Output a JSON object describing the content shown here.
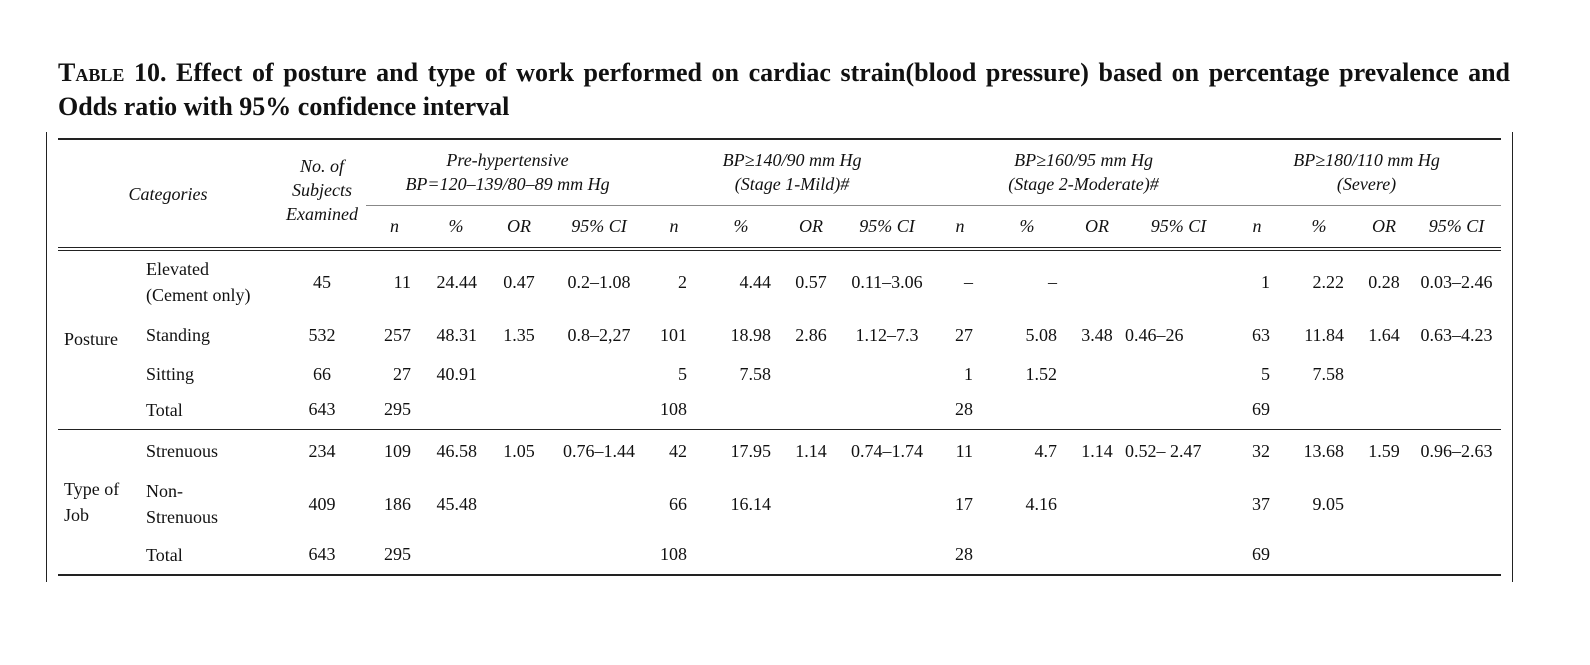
{
  "title": {
    "lead": "Table 10.",
    "text": " Effect of posture and type of work performed on cardiac strain(blood pressure) based on percentage prevalence  and Odds ratio with 95% confidence interval"
  },
  "header": {
    "categories": "Categories",
    "subjects": [
      "No. of",
      "Subjects",
      "Examined"
    ],
    "groups": [
      {
        "line1": "Pre-hypertensive",
        "line2": "BP=120–139/80–89 mm Hg"
      },
      {
        "line1": "BP≥140/90 mm Hg",
        "line2": "(Stage 1-Mild)#"
      },
      {
        "line1": "BP≥160/95 mm Hg",
        "line2": "(Stage 2-Moderate)#"
      },
      {
        "line1": "BP≥180/110 mm Hg",
        "line2": "(Severe)"
      }
    ],
    "subcols": [
      "n",
      "%",
      "OR",
      "95% CI"
    ]
  },
  "rows": [
    {
      "group": "Posture",
      "sub": [
        "Elevated",
        "(Cement only)"
      ],
      "examined": "45",
      "cells": [
        "11",
        "24.44",
        "0.47",
        "0.2–1.08",
        "2",
        "4.44",
        "0.57",
        "0.11–3.06",
        "–",
        "–",
        "",
        "",
        "1",
        "2.22",
        "0.28",
        "0.03–2.46"
      ]
    },
    {
      "group": "",
      "sub": [
        "Standing"
      ],
      "examined": "532",
      "cells": [
        "257",
        "48.31",
        "1.35",
        "0.8–2,27",
        "101",
        "18.98",
        "2.86",
        "1.12–7.3",
        "27",
        "5.08",
        "3.48",
        "0.46–26",
        "63",
        "11.84",
        "1.64",
        "0.63–4.23"
      ]
    },
    {
      "group": "",
      "sub": [
        "Sitting"
      ],
      "examined": "66",
      "cells": [
        "27",
        "40.91",
        "",
        "",
        "5",
        "7.58",
        "",
        "",
        "1",
        "1.52",
        "",
        "",
        "5",
        "7.58",
        "",
        ""
      ]
    },
    {
      "group": "",
      "sub": [
        "Total"
      ],
      "examined": "643",
      "cells": [
        "295",
        "",
        "",
        "",
        "108",
        "",
        "",
        "",
        "28",
        "",
        "",
        "",
        "69",
        "",
        "",
        ""
      ]
    },
    {
      "group": "Type of Job",
      "sub": [
        "Strenuous"
      ],
      "examined": "234",
      "cells": [
        "109",
        "46.58",
        "1.05",
        "0.76–1.44",
        "42",
        "17.95",
        "1.14",
        "0.74–1.74",
        "11",
        "4.7",
        "1.14",
        "0.52–  2.47",
        "32",
        "13.68",
        "1.59",
        "0.96–2.63"
      ]
    },
    {
      "group": "",
      "sub": [
        "Non-",
        "Strenuous"
      ],
      "examined": "409",
      "cells": [
        "186",
        "45.48",
        "",
        "",
        "66",
        "16.14",
        "",
        "",
        "17",
        "4.16",
        "",
        "",
        "37",
        "9.05",
        "",
        ""
      ]
    },
    {
      "group": "",
      "sub": [
        "Total"
      ],
      "examined": "643",
      "cells": [
        "295",
        "",
        "",
        "",
        "108",
        "",
        "",
        "",
        "28",
        "",
        "",
        "",
        "69",
        "",
        "",
        ""
      ]
    }
  ],
  "groups": {
    "posture": "Posture",
    "job": [
      "Type of",
      "Job"
    ]
  }
}
